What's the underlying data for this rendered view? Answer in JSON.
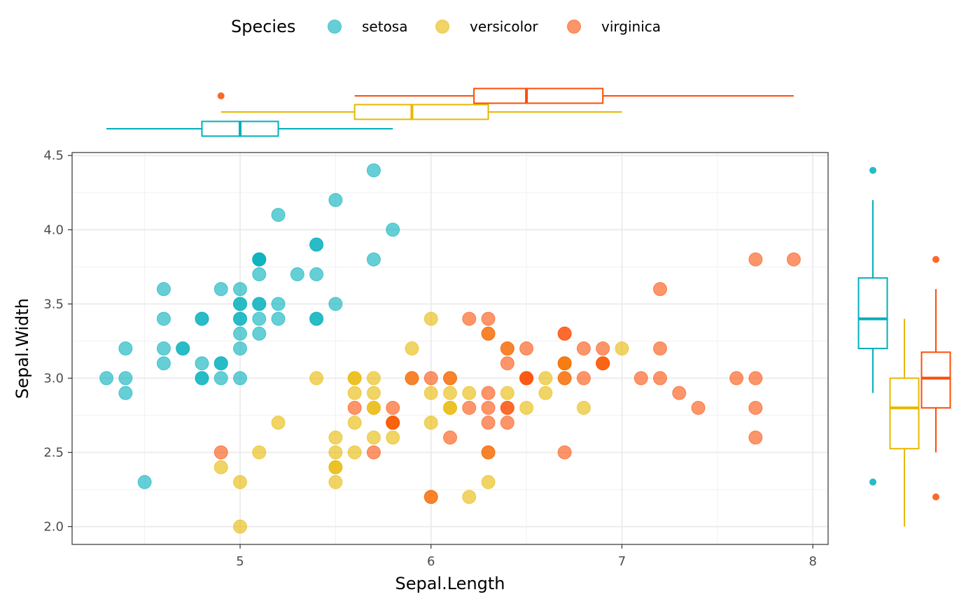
{
  "chart_data": {
    "type": "scatter",
    "xlabel": "Sepal.Length",
    "ylabel": "Sepal.Width",
    "xlim": [
      4.12,
      8.08
    ],
    "ylim": [
      1.88,
      4.52
    ],
    "x_ticks": [
      5,
      6,
      7,
      8
    ],
    "x_tick_labels": [
      "5",
      "6",
      "7",
      "8"
    ],
    "y_ticks": [
      2.0,
      2.5,
      3.0,
      3.5,
      4.0,
      4.5
    ],
    "y_tick_labels": [
      "2.0",
      "2.5",
      "3.0",
      "3.5",
      "4.0",
      "4.5"
    ],
    "legend": {
      "title": "Species",
      "position": "top",
      "entries": [
        "setosa",
        "versicolor",
        "virginica"
      ]
    },
    "series": [
      {
        "name": "setosa",
        "color": "#00AFBB",
        "points": [
          [
            5.1,
            3.5
          ],
          [
            4.9,
            3.0
          ],
          [
            4.7,
            3.2
          ],
          [
            4.6,
            3.1
          ],
          [
            5.0,
            3.6
          ],
          [
            5.4,
            3.9
          ],
          [
            4.6,
            3.4
          ],
          [
            5.0,
            3.4
          ],
          [
            4.4,
            2.9
          ],
          [
            4.9,
            3.1
          ],
          [
            5.4,
            3.7
          ],
          [
            4.8,
            3.4
          ],
          [
            4.8,
            3.0
          ],
          [
            4.3,
            3.0
          ],
          [
            5.8,
            4.0
          ],
          [
            5.7,
            4.4
          ],
          [
            5.4,
            3.9
          ],
          [
            5.1,
            3.5
          ],
          [
            5.7,
            3.8
          ],
          [
            5.1,
            3.8
          ],
          [
            5.4,
            3.4
          ],
          [
            5.1,
            3.7
          ],
          [
            4.6,
            3.6
          ],
          [
            5.1,
            3.3
          ],
          [
            4.8,
            3.4
          ],
          [
            5.0,
            3.0
          ],
          [
            5.0,
            3.4
          ],
          [
            5.2,
            3.5
          ],
          [
            5.2,
            3.4
          ],
          [
            4.7,
            3.2
          ],
          [
            4.8,
            3.1
          ],
          [
            5.4,
            3.4
          ],
          [
            5.2,
            4.1
          ],
          [
            5.5,
            4.2
          ],
          [
            4.9,
            3.1
          ],
          [
            5.0,
            3.2
          ],
          [
            5.5,
            3.5
          ],
          [
            4.9,
            3.6
          ],
          [
            4.4,
            3.0
          ],
          [
            5.1,
            3.4
          ],
          [
            5.0,
            3.5
          ],
          [
            4.5,
            2.3
          ],
          [
            4.4,
            3.2
          ],
          [
            5.0,
            3.5
          ],
          [
            5.1,
            3.8
          ],
          [
            4.8,
            3.0
          ],
          [
            5.1,
            3.8
          ],
          [
            4.6,
            3.2
          ],
          [
            5.3,
            3.7
          ],
          [
            5.0,
            3.3
          ]
        ],
        "box_x": {
          "min": 4.3,
          "q1": 4.8,
          "median": 5.0,
          "q3": 5.2,
          "max": 5.8,
          "outliers": []
        },
        "box_y": {
          "min": 2.9,
          "q1": 3.2,
          "median": 3.4,
          "q3": 3.675,
          "max": 4.2,
          "outliers": [
            4.4,
            2.3
          ]
        }
      },
      {
        "name": "versicolor",
        "color": "#E7B800",
        "points": [
          [
            7.0,
            3.2
          ],
          [
            6.4,
            3.2
          ],
          [
            6.9,
            3.1
          ],
          [
            5.5,
            2.3
          ],
          [
            6.5,
            2.8
          ],
          [
            5.7,
            2.8
          ],
          [
            6.3,
            3.3
          ],
          [
            4.9,
            2.4
          ],
          [
            6.6,
            2.9
          ],
          [
            5.2,
            2.7
          ],
          [
            5.0,
            2.0
          ],
          [
            5.9,
            3.0
          ],
          [
            6.0,
            2.2
          ],
          [
            6.1,
            2.9
          ],
          [
            5.6,
            2.9
          ],
          [
            6.7,
            3.1
          ],
          [
            5.6,
            3.0
          ],
          [
            5.8,
            2.7
          ],
          [
            6.2,
            2.2
          ],
          [
            5.6,
            2.5
          ],
          [
            5.9,
            3.2
          ],
          [
            6.1,
            2.8
          ],
          [
            6.3,
            2.5
          ],
          [
            6.1,
            2.8
          ],
          [
            6.4,
            2.9
          ],
          [
            6.6,
            3.0
          ],
          [
            6.8,
            2.8
          ],
          [
            6.7,
            3.0
          ],
          [
            6.0,
            2.9
          ],
          [
            5.7,
            2.6
          ],
          [
            5.5,
            2.4
          ],
          [
            5.5,
            2.4
          ],
          [
            5.8,
            2.7
          ],
          [
            6.0,
            2.7
          ],
          [
            5.4,
            3.0
          ],
          [
            6.0,
            3.4
          ],
          [
            6.7,
            3.1
          ],
          [
            6.3,
            2.3
          ],
          [
            5.6,
            3.0
          ],
          [
            5.5,
            2.5
          ],
          [
            5.5,
            2.6
          ],
          [
            6.1,
            3.0
          ],
          [
            5.8,
            2.6
          ],
          [
            5.0,
            2.3
          ],
          [
            5.6,
            2.7
          ],
          [
            5.7,
            3.0
          ],
          [
            5.7,
            2.9
          ],
          [
            6.2,
            2.9
          ],
          [
            5.1,
            2.5
          ],
          [
            5.7,
            2.8
          ]
        ],
        "box_x": {
          "min": 4.9,
          "q1": 5.6,
          "median": 5.9,
          "q3": 6.3,
          "max": 7.0,
          "outliers": []
        },
        "box_y": {
          "min": 2.0,
          "q1": 2.525,
          "median": 2.8,
          "q3": 3.0,
          "max": 3.4,
          "outliers": []
        }
      },
      {
        "name": "virginica",
        "color": "#FC4E07",
        "points": [
          [
            6.3,
            3.3
          ],
          [
            5.8,
            2.7
          ],
          [
            7.1,
            3.0
          ],
          [
            6.3,
            2.9
          ],
          [
            6.5,
            3.0
          ],
          [
            7.6,
            3.0
          ],
          [
            4.9,
            2.5
          ],
          [
            7.3,
            2.9
          ],
          [
            6.7,
            2.5
          ],
          [
            7.2,
            3.6
          ],
          [
            6.5,
            3.2
          ],
          [
            6.4,
            2.7
          ],
          [
            6.8,
            3.0
          ],
          [
            5.7,
            2.5
          ],
          [
            5.8,
            2.8
          ],
          [
            6.4,
            3.2
          ],
          [
            6.5,
            3.0
          ],
          [
            7.7,
            3.8
          ],
          [
            7.7,
            2.6
          ],
          [
            6.0,
            2.2
          ],
          [
            6.9,
            3.2
          ],
          [
            5.6,
            2.8
          ],
          [
            7.7,
            2.8
          ],
          [
            6.3,
            2.7
          ],
          [
            6.7,
            3.3
          ],
          [
            7.2,
            3.2
          ],
          [
            6.2,
            2.8
          ],
          [
            6.1,
            3.0
          ],
          [
            6.4,
            2.8
          ],
          [
            7.2,
            3.0
          ],
          [
            7.4,
            2.8
          ],
          [
            7.9,
            3.8
          ],
          [
            6.4,
            2.8
          ],
          [
            6.3,
            2.8
          ],
          [
            6.1,
            2.6
          ],
          [
            7.7,
            3.0
          ],
          [
            6.3,
            3.4
          ],
          [
            6.4,
            3.1
          ],
          [
            6.0,
            3.0
          ],
          [
            6.9,
            3.1
          ],
          [
            6.7,
            3.1
          ],
          [
            6.9,
            3.1
          ],
          [
            5.8,
            2.7
          ],
          [
            6.8,
            3.2
          ],
          [
            6.7,
            3.3
          ],
          [
            6.7,
            3.0
          ],
          [
            6.3,
            2.5
          ],
          [
            6.5,
            3.0
          ],
          [
            6.2,
            3.4
          ],
          [
            5.9,
            3.0
          ]
        ],
        "box_x": {
          "min": 5.6,
          "q1": 6.225,
          "median": 6.5,
          "q3": 6.9,
          "max": 7.9,
          "outliers": [
            4.9
          ]
        },
        "box_y": {
          "min": 2.5,
          "q1": 2.8,
          "median": 3.0,
          "q3": 3.175,
          "max": 3.6,
          "outliers": [
            3.8,
            2.2
          ]
        }
      }
    ]
  }
}
